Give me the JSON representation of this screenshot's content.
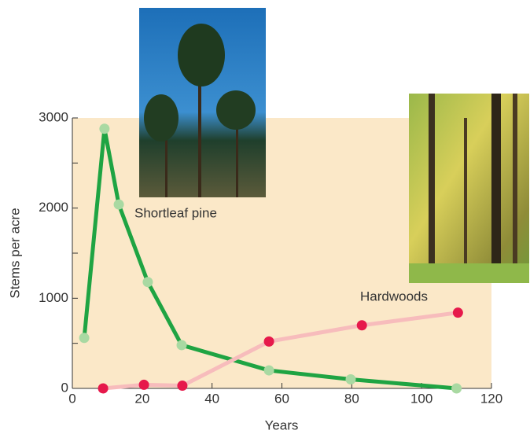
{
  "chart_data": {
    "type": "line",
    "x_label": "Years",
    "y_label": "Stems per acre",
    "xlim": [
      0,
      120
    ],
    "xticks": [
      0,
      20,
      40,
      60,
      80,
      100,
      120
    ],
    "ylim": [
      0,
      3000
    ],
    "yticks": [
      0,
      1000,
      2000,
      3000
    ],
    "yminorticks": [
      500,
      1500,
      2500
    ],
    "background": "#fbe8c8",
    "series": [
      {
        "name": "Shortleaf pine",
        "color": "#1fa443",
        "marker_color": "#a9d9a2",
        "x": [
          3.4,
          9.2,
          13.3,
          21.6,
          31.3,
          56.3,
          79.7,
          110
        ],
        "values": [
          560,
          2880,
          2040,
          1180,
          480,
          200,
          100,
          0
        ]
      },
      {
        "name": "Hardwoods",
        "color": "#f7bcbc",
        "marker_color": "#e6194b",
        "x": [
          8.8,
          20.5,
          31.5,
          56.3,
          82.9,
          110.4
        ],
        "values": [
          0,
          40,
          30,
          520,
          700,
          840
        ]
      }
    ]
  }
}
